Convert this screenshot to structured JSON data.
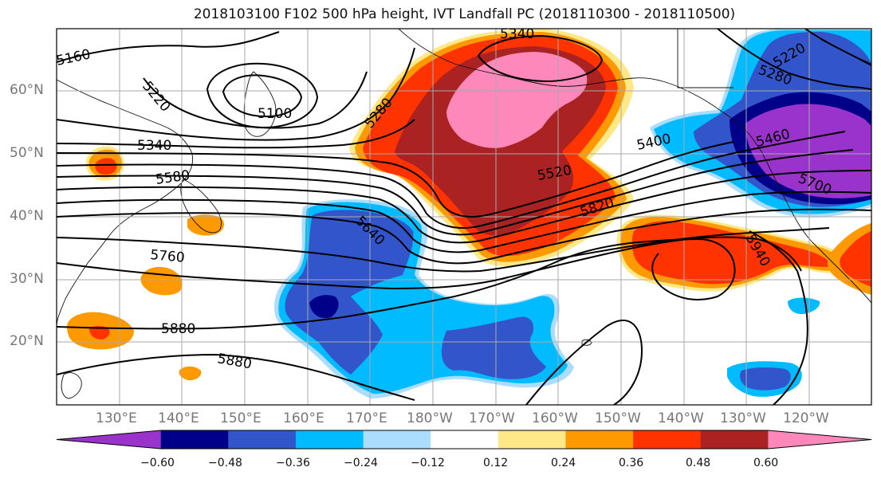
{
  "title": "2018103100 F102 500 hPa height, IVT Landfall PC (2018110300 - 2018110500)",
  "lat_labels": [
    "60°N",
    "50°N",
    "40°N",
    "30°N",
    "20°N"
  ],
  "lon_labels": [
    "130°E",
    "140°E",
    "150°E",
    "160°E",
    "170°E",
    "180°W",
    "170°W",
    "160°W",
    "150°W",
    "140°W",
    "130°W",
    "120°W"
  ],
  "contour_labels": [
    "5340",
    "5160",
    "5220",
    "5100",
    "5340",
    "5580",
    "5280",
    "5220",
    "5280",
    "5400",
    "5520",
    "5460",
    "5700",
    "5820",
    "5640",
    "5760",
    "5940",
    "5880",
    "5880"
  ],
  "colorbar": {
    "colors": [
      "#9933cc",
      "#000088",
      "#3355cc",
      "#00bbff",
      "#aaddff",
      "#ffffff",
      "#ffe888",
      "#ff9900",
      "#ff3300",
      "#aa2222",
      "#ff88bb"
    ],
    "tick_labels": [
      "−0.60",
      "−0.48",
      "−0.36",
      "−0.24",
      "−0.12",
      "0.12",
      "0.24",
      "0.36",
      "0.48",
      "0.60"
    ]
  },
  "colors": {
    "pink": "#ff88bb",
    "darkred": "#aa2222",
    "red": "#ff3300",
    "orange": "#ff9900",
    "yellow": "#ffe888",
    "lightblue": "#aaddff",
    "cyan": "#00bbff",
    "blue": "#3355cc",
    "navy": "#000088",
    "purple": "#9933cc"
  }
}
